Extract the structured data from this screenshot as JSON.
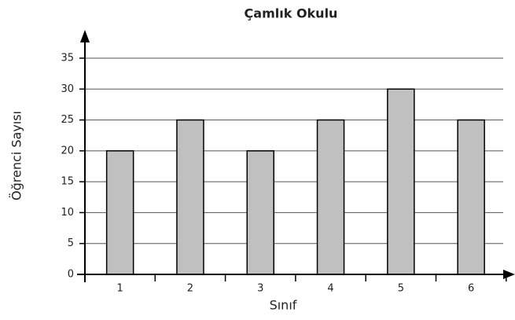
{
  "chart_data": {
    "type": "bar",
    "title": "Çamlık Okulu",
    "x_label": "Sınıf",
    "y_label": "Öğrenci Sayısı",
    "categories": [
      "1",
      "2",
      "3",
      "4",
      "5",
      "6"
    ],
    "values": [
      20,
      25,
      20,
      25,
      30,
      25
    ],
    "color": "#c0c0c0",
    "ylim": [
      0,
      35
    ],
    "yticks": [
      0,
      5,
      10,
      15,
      20,
      25,
      30,
      35
    ],
    "grid": true
  }
}
